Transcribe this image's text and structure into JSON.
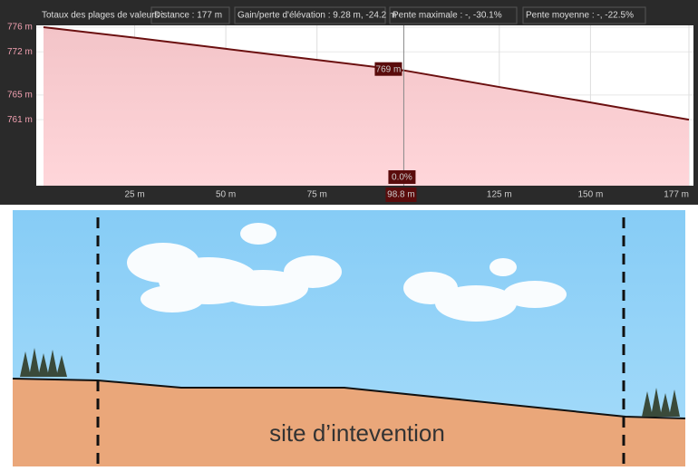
{
  "chart_data": {
    "type": "line",
    "header": [
      "Totaux des plages de valeurs :",
      "Distance : 177 m",
      "Gain/perte d'élévation : 9.28 m, -24.2 m",
      "Pente maximale : -, -30.1%",
      "Pente moyenne : -, -22.5%"
    ],
    "x": [
      0,
      25,
      50,
      75,
      98.8,
      125,
      150,
      177
    ],
    "series": [
      {
        "color": "#6b1010",
        "values": [
          776,
          774.3,
          772.5,
          770.7,
          769,
          766.3,
          763.8,
          761
        ]
      }
    ],
    "xlim": [
      0,
      177
    ],
    "ylim": [
      750.3,
      776.3
    ],
    "xticks": [
      {
        "value": 25,
        "label": "25 m"
      },
      {
        "value": 50,
        "label": "50 m"
      },
      {
        "value": 75,
        "label": "75 m"
      },
      {
        "value": 125,
        "label": "125 m"
      },
      {
        "value": 150,
        "label": "150 m"
      },
      {
        "value": 177,
        "label": "177 m"
      }
    ],
    "yticks": [
      {
        "value": 776,
        "label": "776 m"
      },
      {
        "value": 772,
        "label": "772 m"
      },
      {
        "value": 765,
        "label": "765 m"
      },
      {
        "value": 761,
        "label": "761 m"
      }
    ],
    "cursor": {
      "x": {
        "value": 98.8,
        "label": "98.8 m"
      },
      "y": {
        "value": 769,
        "label": "769 m"
      },
      "slope": {
        "value": 0,
        "label": "0.0%"
      }
    },
    "grid": true
  },
  "diagram": {
    "label": "site d’intevention"
  }
}
